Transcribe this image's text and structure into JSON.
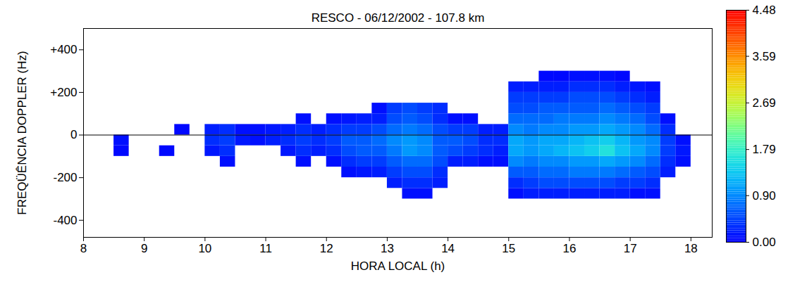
{
  "chart_data": {
    "type": "heatmap",
    "title": "RESCO - 06/12/2002 - 107.8 km",
    "x_label": "HORA LOCAL (h)",
    "y_label": "FREQÜÊNCIA DOPPLER (Hz)",
    "xlim": [
      8,
      18.35
    ],
    "xticks": [
      8,
      9,
      10,
      11,
      12,
      13,
      14,
      15,
      16,
      17,
      18
    ],
    "ylim": [
      -480,
      500
    ],
    "yticks": [
      {
        "value": -400,
        "label": "-400"
      },
      {
        "value": -200,
        "label": "-200"
      },
      0,
      {
        "value": 200,
        "label": "+200"
      },
      {
        "value": 400,
        "label": "+400"
      }
    ],
    "rules": [
      0
    ],
    "x_bins": [
      8,
      8.25,
      8.5,
      8.75,
      9,
      9.25,
      9.5,
      9.75,
      10,
      10.25,
      10.5,
      10.75,
      11,
      11.25,
      11.5,
      11.75,
      12,
      12.25,
      12.5,
      12.75,
      13,
      13.25,
      13.5,
      13.75,
      14,
      14.25,
      14.5,
      14.75,
      15,
      15.25,
      15.5,
      15.75,
      16,
      16.25,
      16.5,
      16.75,
      17,
      17.25,
      17.5,
      17.75,
      18
    ],
    "y_bins": [
      -300,
      -250,
      -200,
      -150,
      -100,
      -50,
      0,
      50,
      100,
      150,
      200,
      250,
      300
    ],
    "values": [
      [
        null,
        null,
        null,
        null,
        null,
        null,
        null,
        null,
        null,
        null,
        null,
        null
      ],
      [
        null,
        null,
        null,
        null,
        null,
        null,
        null,
        null,
        null,
        null,
        null,
        null
      ],
      [
        null,
        null,
        null,
        null,
        0.05,
        0.1,
        null,
        null,
        null,
        null,
        null,
        null
      ],
      [
        null,
        null,
        null,
        null,
        null,
        null,
        null,
        null,
        null,
        null,
        null,
        null
      ],
      [
        null,
        null,
        null,
        null,
        null,
        null,
        null,
        null,
        null,
        null,
        null,
        null
      ],
      [
        null,
        null,
        null,
        null,
        0.05,
        null,
        null,
        null,
        null,
        null,
        null,
        null
      ],
      [
        null,
        null,
        null,
        null,
        null,
        null,
        0.05,
        null,
        null,
        null,
        null,
        null
      ],
      [
        null,
        null,
        null,
        null,
        null,
        null,
        null,
        null,
        null,
        null,
        null,
        null
      ],
      [
        null,
        null,
        null,
        null,
        0.15,
        0.3,
        0.2,
        null,
        null,
        null,
        null,
        null
      ],
      [
        null,
        null,
        null,
        0.1,
        0.3,
        0.4,
        0.3,
        null,
        null,
        null,
        null,
        null
      ],
      [
        null,
        null,
        null,
        null,
        null,
        0.15,
        0.1,
        null,
        null,
        null,
        null,
        null
      ],
      [
        null,
        null,
        null,
        null,
        null,
        0.1,
        0.1,
        null,
        null,
        null,
        null,
        null
      ],
      [
        null,
        null,
        null,
        null,
        null,
        0.2,
        0.15,
        null,
        null,
        null,
        null,
        null
      ],
      [
        null,
        null,
        null,
        null,
        0.15,
        0.3,
        0.2,
        null,
        null,
        null,
        null,
        null
      ],
      [
        null,
        null,
        null,
        0.1,
        0.3,
        0.4,
        0.3,
        0.1,
        null,
        null,
        null,
        null
      ],
      [
        null,
        null,
        null,
        null,
        0.2,
        0.3,
        0.2,
        null,
        null,
        null,
        null,
        null
      ],
      [
        null,
        null,
        null,
        0.1,
        0.3,
        0.4,
        0.3,
        0.1,
        null,
        null,
        null,
        null
      ],
      [
        null,
        null,
        0.1,
        0.3,
        0.5,
        0.6,
        0.4,
        0.15,
        null,
        null,
        null,
        null
      ],
      [
        null,
        null,
        0.15,
        0.4,
        0.6,
        0.6,
        0.4,
        0.2,
        null,
        null,
        null,
        null
      ],
      [
        null,
        null,
        0.2,
        0.4,
        0.6,
        0.7,
        0.5,
        0.2,
        0.1,
        null,
        null,
        null
      ],
      [
        null,
        0.2,
        0.4,
        0.6,
        0.8,
        0.9,
        0.7,
        0.5,
        0.4,
        null,
        null,
        null
      ],
      [
        0.1,
        0.3,
        0.5,
        0.7,
        1.0,
        1.0,
        0.8,
        0.6,
        0.5,
        null,
        null,
        null
      ],
      [
        0.1,
        0.3,
        0.5,
        0.7,
        0.9,
        0.9,
        0.7,
        0.5,
        0.4,
        null,
        null,
        null
      ],
      [
        null,
        0.2,
        0.3,
        0.5,
        0.6,
        0.6,
        0.5,
        0.3,
        0.3,
        null,
        null,
        null
      ],
      [
        null,
        null,
        null,
        0.2,
        0.5,
        0.6,
        0.4,
        0.1,
        null,
        null,
        null,
        null
      ],
      [
        null,
        null,
        null,
        0.2,
        0.4,
        0.5,
        0.4,
        0.1,
        null,
        null,
        null,
        null
      ],
      [
        null,
        null,
        null,
        0.1,
        0.3,
        0.3,
        0.2,
        null,
        null,
        null,
        null,
        null
      ],
      [
        null,
        null,
        null,
        0.1,
        0.2,
        0.3,
        0.2,
        null,
        null,
        null,
        null,
        null
      ],
      [
        0.1,
        0.3,
        0.6,
        0.9,
        1.1,
        1.1,
        0.9,
        0.7,
        0.5,
        0.4,
        0.2,
        null
      ],
      [
        0.2,
        0.4,
        0.6,
        0.8,
        1.0,
        1.0,
        0.8,
        0.7,
        0.5,
        0.4,
        0.2,
        null
      ],
      [
        0.2,
        0.5,
        0.7,
        0.9,
        1.1,
        1.1,
        0.9,
        0.7,
        0.6,
        0.4,
        0.2,
        0.05
      ],
      [
        0.2,
        0.5,
        0.7,
        0.9,
        1.2,
        1.1,
        0.9,
        0.8,
        0.6,
        0.4,
        0.2,
        0.05
      ],
      [
        0.2,
        0.5,
        0.8,
        1.0,
        1.3,
        1.2,
        1.0,
        0.8,
        0.6,
        0.5,
        0.3,
        0.1
      ],
      [
        0.2,
        0.5,
        0.8,
        1.0,
        1.4,
        1.3,
        1.0,
        0.8,
        0.6,
        0.5,
        0.3,
        0.1
      ],
      [
        0.2,
        0.5,
        0.8,
        1.1,
        1.6,
        1.4,
        1.1,
        0.9,
        0.7,
        0.5,
        0.3,
        0.1
      ],
      [
        0.2,
        0.4,
        0.7,
        1.0,
        1.3,
        1.2,
        1.0,
        0.8,
        0.6,
        0.4,
        0.2,
        0.05
      ],
      [
        0.1,
        0.4,
        0.6,
        0.9,
        1.1,
        1.0,
        0.9,
        0.7,
        0.5,
        0.3,
        0.15,
        null
      ],
      [
        0.1,
        0.3,
        0.5,
        0.7,
        0.9,
        0.9,
        0.7,
        0.5,
        0.4,
        0.2,
        0.1,
        null
      ],
      [
        null,
        null,
        0.2,
        0.3,
        0.4,
        0.4,
        0.3,
        0.1,
        null,
        null,
        null,
        null
      ],
      [
        null,
        null,
        null,
        0.1,
        0.15,
        0.1,
        null,
        null,
        null,
        null,
        null,
        null
      ]
    ],
    "colorbar": {
      "range": [
        0,
        4.48
      ],
      "ticks": [
        {
          "value": 0,
          "label": "0.00"
        },
        {
          "value": 0.9,
          "label": "0.90"
        },
        {
          "value": 1.79,
          "label": "1.79"
        },
        {
          "value": 2.69,
          "label": "2.69"
        },
        {
          "value": 3.59,
          "label": "3.59"
        },
        {
          "value": 4.48,
          "label": "4.48"
        }
      ]
    }
  }
}
